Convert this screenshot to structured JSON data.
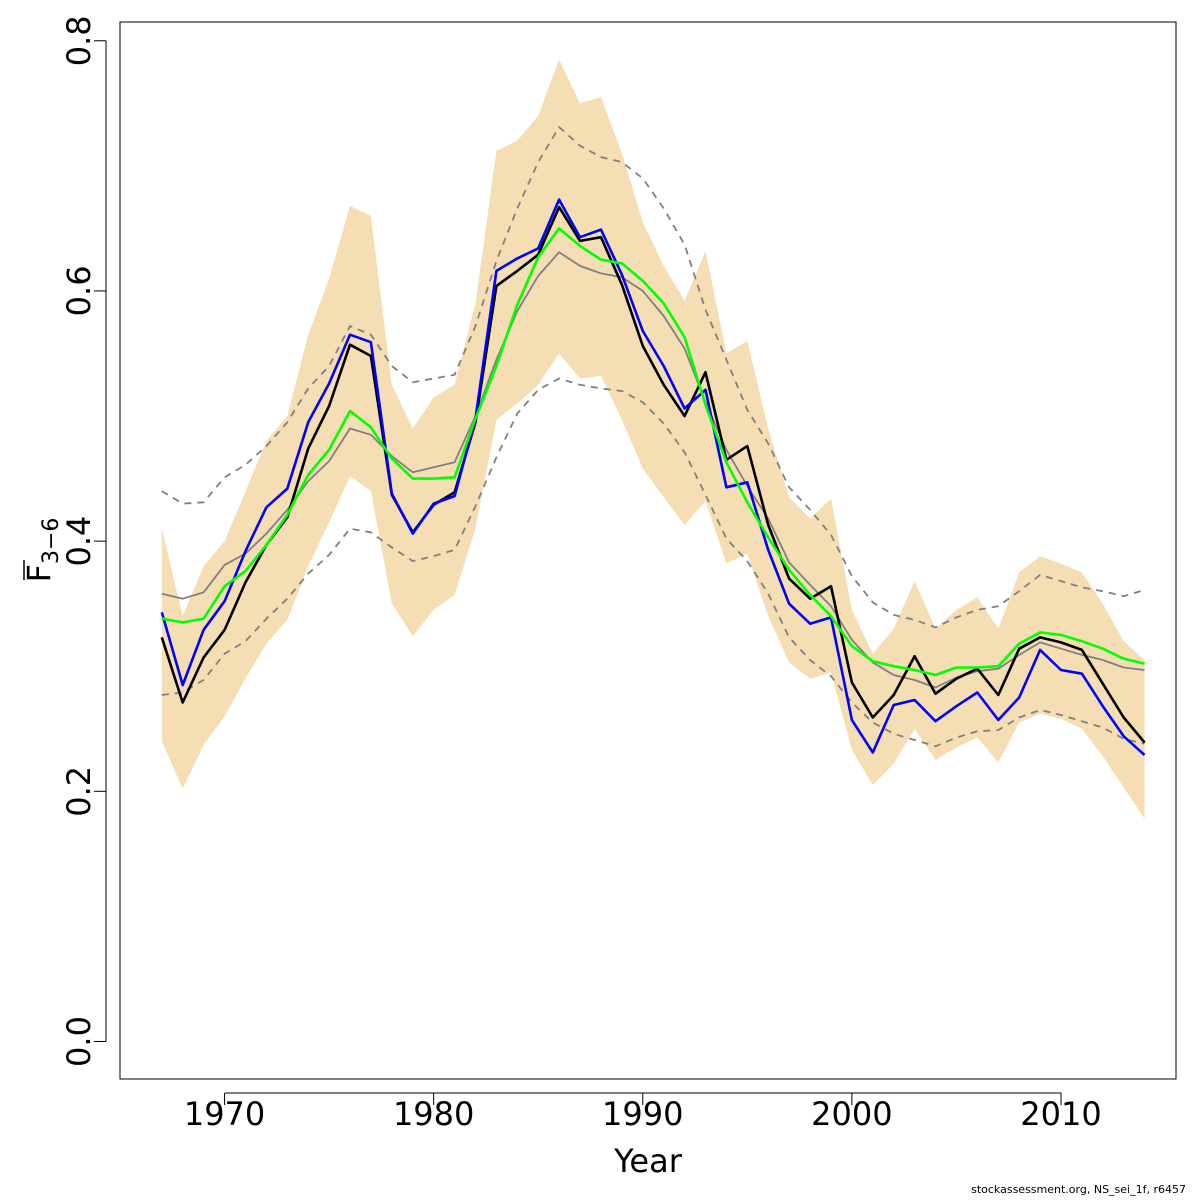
{
  "chart_data": {
    "type": "line",
    "xlabel": "Year",
    "ylabel_main": "F",
    "ylabel_sub": "3−6",
    "xlim": [
      1965,
      2015.5
    ],
    "ylim": [
      -0.03,
      0.815
    ],
    "x_ticks": [
      1970,
      1980,
      1990,
      2000,
      2010
    ],
    "y_ticks": [
      0.0,
      0.2,
      0.4,
      0.6,
      0.8
    ],
    "y_tick_labels": [
      "0.0",
      "0.2",
      "0.4",
      "0.6",
      "0.8"
    ],
    "grid": false,
    "band_color": "#f5deb3",
    "x": [
      1967,
      1968,
      1969,
      1970,
      1971,
      1972,
      1973,
      1974,
      1975,
      1976,
      1977,
      1978,
      1979,
      1980,
      1981,
      1982,
      1983,
      1984,
      1985,
      1986,
      1987,
      1988,
      1989,
      1990,
      1991,
      1992,
      1993,
      1994,
      1995,
      1996,
      1997,
      1998,
      1999,
      2000,
      2001,
      2002,
      2003,
      2004,
      2005,
      2006,
      2007,
      2008,
      2009,
      2010,
      2011,
      2012,
      2013,
      2014
    ],
    "band_upper": [
      0.41,
      0.34,
      0.38,
      0.4,
      0.44,
      0.48,
      0.5,
      0.565,
      0.61,
      0.668,
      0.66,
      0.525,
      0.49,
      0.515,
      0.525,
      0.59,
      0.712,
      0.72,
      0.74,
      0.785,
      0.75,
      0.755,
      0.71,
      0.655,
      0.62,
      0.592,
      0.632,
      0.55,
      0.56,
      0.49,
      0.435,
      0.418,
      0.434,
      0.345,
      0.31,
      0.33,
      0.368,
      0.33,
      0.345,
      0.355,
      0.33,
      0.375,
      0.388,
      0.382,
      0.375,
      0.35,
      0.32,
      0.305
    ],
    "band_lower": [
      0.24,
      0.202,
      0.237,
      0.26,
      0.29,
      0.318,
      0.337,
      0.38,
      0.415,
      0.452,
      0.44,
      0.35,
      0.324,
      0.345,
      0.357,
      0.41,
      0.497,
      0.51,
      0.525,
      0.55,
      0.53,
      0.532,
      0.497,
      0.458,
      0.435,
      0.413,
      0.432,
      0.382,
      0.39,
      0.34,
      0.303,
      0.29,
      0.295,
      0.233,
      0.205,
      0.222,
      0.25,
      0.225,
      0.235,
      0.243,
      0.223,
      0.255,
      0.262,
      0.258,
      0.25,
      0.228,
      0.203,
      0.178
    ],
    "series": [
      {
        "color": "#808080",
        "dash": "dashed",
        "width": 1.8,
        "values": [
          0.44,
          0.43,
          0.431,
          0.451,
          0.461,
          0.476,
          0.495,
          0.522,
          0.54,
          0.572,
          0.565,
          0.54,
          0.527,
          0.53,
          0.533,
          0.572,
          0.624,
          0.666,
          0.703,
          0.731,
          0.716,
          0.707,
          0.703,
          0.69,
          0.666,
          0.637,
          0.585,
          0.545,
          0.505,
          0.478,
          0.443,
          0.425,
          0.405,
          0.372,
          0.351,
          0.341,
          0.337,
          0.331,
          0.339,
          0.345,
          0.348,
          0.36,
          0.373,
          0.368,
          0.363,
          0.36,
          0.356,
          0.361
        ]
      },
      {
        "color": "#808080",
        "dash": "dashed",
        "width": 1.8,
        "values": [
          0.277,
          0.279,
          0.289,
          0.31,
          0.32,
          0.338,
          0.354,
          0.374,
          0.389,
          0.41,
          0.407,
          0.395,
          0.384,
          0.388,
          0.393,
          0.428,
          0.467,
          0.502,
          0.521,
          0.53,
          0.525,
          0.522,
          0.52,
          0.511,
          0.494,
          0.471,
          0.437,
          0.402,
          0.384,
          0.358,
          0.323,
          0.305,
          0.292,
          0.271,
          0.255,
          0.246,
          0.241,
          0.236,
          0.243,
          0.248,
          0.249,
          0.259,
          0.265,
          0.261,
          0.256,
          0.251,
          0.242,
          0.238
        ]
      },
      {
        "color": "#808080",
        "dash": "solid",
        "width": 1.8,
        "values": [
          0.358,
          0.354,
          0.359,
          0.381,
          0.39,
          0.406,
          0.425,
          0.448,
          0.464,
          0.49,
          0.485,
          0.468,
          0.455,
          0.459,
          0.463,
          0.5,
          0.545,
          0.584,
          0.612,
          0.631,
          0.62,
          0.614,
          0.611,
          0.6,
          0.58,
          0.554,
          0.511,
          0.473,
          0.444,
          0.418,
          0.383,
          0.365,
          0.348,
          0.321,
          0.303,
          0.293,
          0.289,
          0.283,
          0.291,
          0.296,
          0.298,
          0.309,
          0.319,
          0.314,
          0.309,
          0.305,
          0.299,
          0.297
        ]
      },
      {
        "color": "#000000",
        "dash": "solid",
        "width": 2.6,
        "values": [
          0.323,
          0.271,
          0.307,
          0.329,
          0.367,
          0.397,
          0.419,
          0.474,
          0.508,
          0.557,
          0.548,
          0.437,
          0.407,
          0.429,
          0.439,
          0.495,
          0.604,
          0.616,
          0.629,
          0.667,
          0.64,
          0.643,
          0.605,
          0.556,
          0.525,
          0.5,
          0.535,
          0.465,
          0.476,
          0.413,
          0.37,
          0.354,
          0.364,
          0.287,
          0.259,
          0.277,
          0.308,
          0.278,
          0.29,
          0.298,
          0.277,
          0.314,
          0.323,
          0.319,
          0.313,
          0.286,
          0.259,
          0.239
        ]
      },
      {
        "color": "#0000ff",
        "dash": "solid",
        "width": 2.6,
        "values": [
          0.343,
          0.285,
          0.329,
          0.352,
          0.392,
          0.427,
          0.442,
          0.495,
          0.526,
          0.565,
          0.559,
          0.438,
          0.406,
          0.43,
          0.436,
          0.498,
          0.616,
          0.626,
          0.634,
          0.673,
          0.643,
          0.649,
          0.613,
          0.568,
          0.54,
          0.506,
          0.521,
          0.443,
          0.447,
          0.393,
          0.35,
          0.334,
          0.339,
          0.257,
          0.231,
          0.269,
          0.273,
          0.256,
          0.268,
          0.279,
          0.257,
          0.275,
          0.313,
          0.297,
          0.294,
          0.268,
          0.244,
          0.229
        ]
      },
      {
        "color": "#00ff00",
        "dash": "solid",
        "width": 2.6,
        "values": [
          0.338,
          0.335,
          0.338,
          0.364,
          0.376,
          0.397,
          0.421,
          0.453,
          0.473,
          0.504,
          0.491,
          0.466,
          0.45,
          0.45,
          0.451,
          0.498,
          0.54,
          0.589,
          0.627,
          0.65,
          0.636,
          0.625,
          0.622,
          0.608,
          0.59,
          0.563,
          0.509,
          0.463,
          0.431,
          0.403,
          0.377,
          0.357,
          0.34,
          0.316,
          0.304,
          0.3,
          0.297,
          0.293,
          0.299,
          0.299,
          0.3,
          0.318,
          0.327,
          0.325,
          0.32,
          0.314,
          0.306,
          0.302
        ]
      }
    ]
  },
  "footer": {
    "credit": "stockassessment.org, NS_sei_1f, r6457"
  }
}
